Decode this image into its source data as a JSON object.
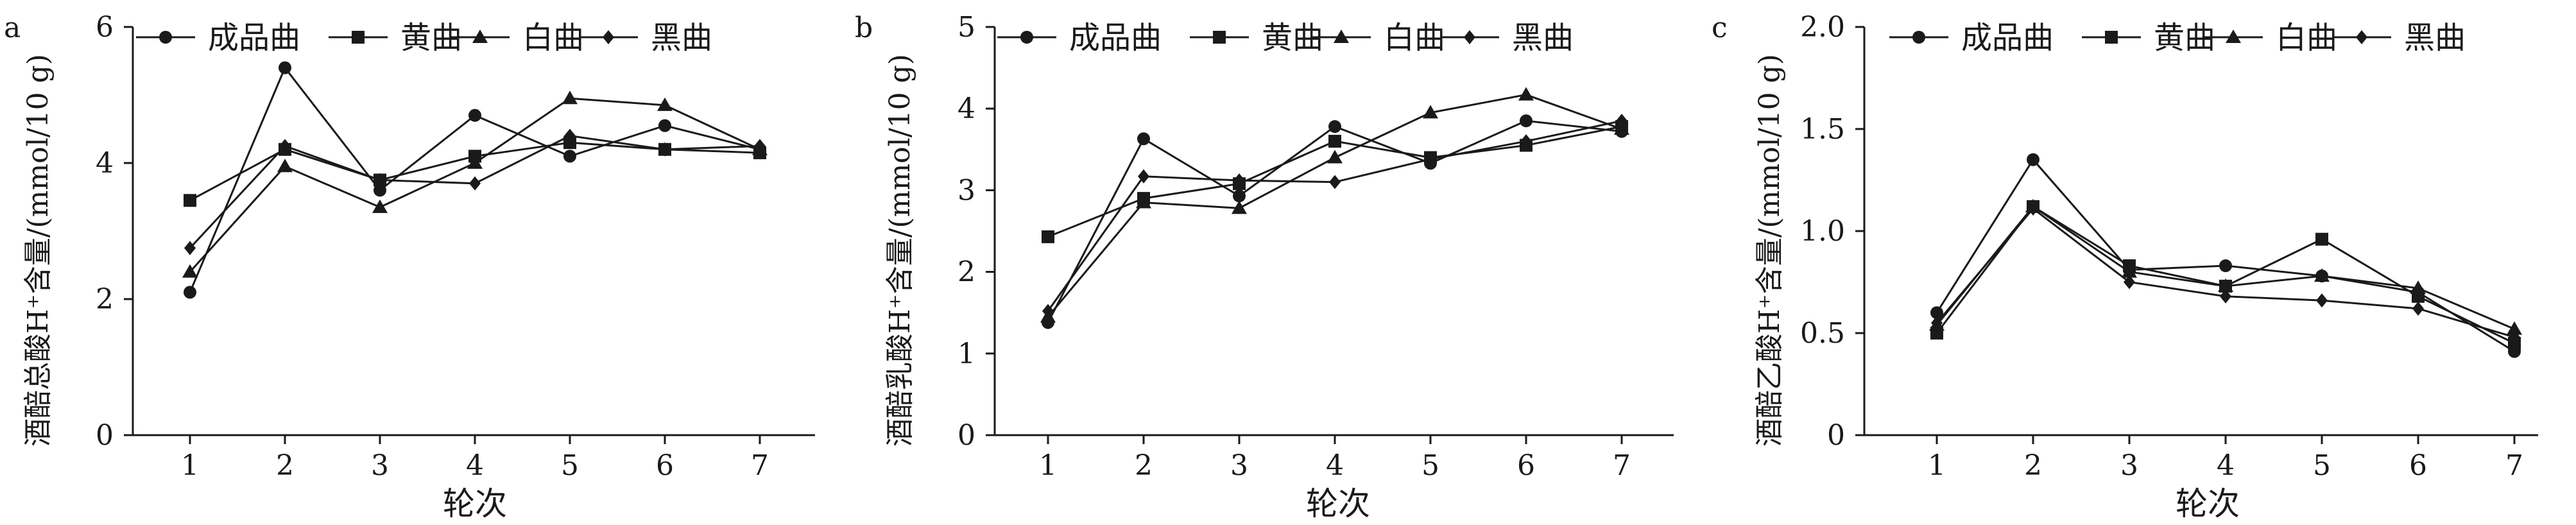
{
  "chart_data": [
    {
      "type": "line",
      "panel_label": "a",
      "categories": [
        "1",
        "2",
        "3",
        "4",
        "5",
        "6",
        "7"
      ],
      "xlabel": "轮次",
      "ylabel": "酒醅总酸H⁺含量/(mmol/10 g)",
      "ylim": [
        0,
        6
      ],
      "yticks": [
        "0",
        "2",
        "4",
        "6"
      ],
      "grid": false,
      "legend_placement": "top",
      "series": [
        {
          "name": "成品曲",
          "marker": "circle",
          "values": [
            2.1,
            5.4,
            3.6,
            4.7,
            4.1,
            4.55,
            4.2
          ]
        },
        {
          "name": "黄曲",
          "marker": "square",
          "values": [
            3.45,
            4.2,
            3.75,
            4.1,
            4.3,
            4.2,
            4.15
          ]
        },
        {
          "name": "白曲",
          "marker": "triangle",
          "values": [
            2.4,
            3.95,
            3.35,
            4.0,
            4.95,
            4.85,
            4.2
          ]
        },
        {
          "name": "黑曲",
          "marker": "diamond",
          "values": [
            2.75,
            4.25,
            3.75,
            3.7,
            4.4,
            4.2,
            4.25
          ]
        }
      ]
    },
    {
      "type": "line",
      "panel_label": "b",
      "categories": [
        "1",
        "2",
        "3",
        "4",
        "5",
        "6",
        "7"
      ],
      "xlabel": "轮次",
      "ylabel": "酒醅乳酸H⁺含量/(mmol/10 g)",
      "ylim": [
        0,
        5
      ],
      "yticks": [
        "0",
        "1",
        "2",
        "3",
        "4",
        "5"
      ],
      "grid": false,
      "legend_placement": "top",
      "series": [
        {
          "name": "成品曲",
          "marker": "circle",
          "values": [
            1.38,
            3.63,
            2.93,
            3.78,
            3.33,
            3.85,
            3.72
          ]
        },
        {
          "name": "黄曲",
          "marker": "square",
          "values": [
            2.43,
            2.9,
            3.08,
            3.6,
            3.4,
            3.55,
            3.78
          ]
        },
        {
          "name": "白曲",
          "marker": "triangle",
          "values": [
            1.45,
            2.85,
            2.78,
            3.4,
            3.95,
            4.17,
            3.75
          ]
        },
        {
          "name": "黑曲",
          "marker": "diamond",
          "values": [
            1.52,
            3.17,
            3.12,
            3.1,
            3.38,
            3.6,
            3.85
          ]
        }
      ]
    },
    {
      "type": "line",
      "panel_label": "c",
      "categories": [
        "1",
        "2",
        "3",
        "4",
        "5",
        "6",
        "7"
      ],
      "xlabel": "轮次",
      "ylabel": "酒醅乙酸H⁺含量/(mmol/10 g)",
      "ylim": [
        0,
        2
      ],
      "yticks": [
        "0",
        "0.5",
        "1.0",
        "1.5",
        "2.0"
      ],
      "grid": false,
      "legend_placement": "top",
      "series": [
        {
          "name": "成品曲",
          "marker": "circle",
          "values": [
            0.6,
            1.35,
            0.81,
            0.83,
            0.78,
            0.7,
            0.41
          ]
        },
        {
          "name": "黄曲",
          "marker": "square",
          "values": [
            0.5,
            1.12,
            0.83,
            0.73,
            0.96,
            0.68,
            0.45
          ]
        },
        {
          "name": "白曲",
          "marker": "triangle",
          "values": [
            0.54,
            1.12,
            0.8,
            0.73,
            0.78,
            0.72,
            0.52
          ]
        },
        {
          "name": "黑曲",
          "marker": "diamond",
          "values": [
            0.55,
            1.11,
            0.75,
            0.68,
            0.66,
            0.62,
            0.48
          ]
        }
      ]
    }
  ]
}
